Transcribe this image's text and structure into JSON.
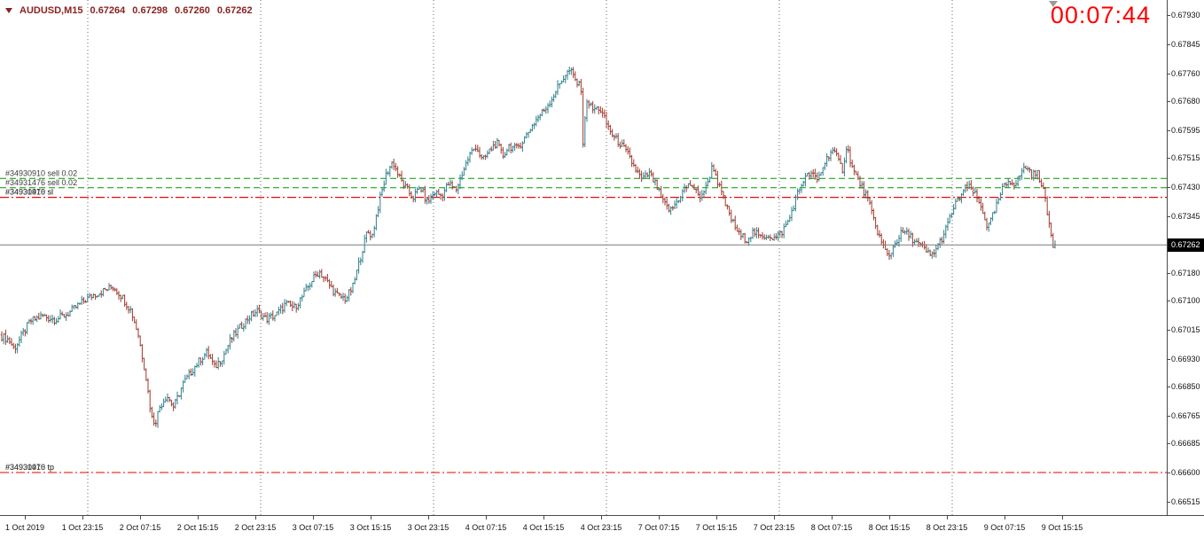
{
  "header": {
    "symbol_timeframe": "AUDUSD,M15",
    "open": "0.67264",
    "high": "0.67298",
    "low": "0.67260",
    "close": "0.67262",
    "text_color": "#8b2222"
  },
  "timer": {
    "value": "00:07:44",
    "color": "#ff0000"
  },
  "chart_data": {
    "type": "ohlc-bars",
    "title": "AUDUSD,M15",
    "symbol": "AUDUSD",
    "timeframe": "M15",
    "bid": 0.67262,
    "bid_label": "0.67262",
    "ohlc_header": {
      "open": 0.67264,
      "high": 0.67298,
      "low": 0.6726,
      "close": 0.67262
    },
    "up_color": "#2f7f8c",
    "down_color": "#9e3a2e",
    "colors": {
      "entry_line": "#009a00",
      "stop_line": "#e80000",
      "bid_line": "#7a7a7a",
      "separator": "#6a6a6a",
      "axis_text": "#111111",
      "order_label_text": "#3a3a3a"
    },
    "y_axis": {
      "min": 0.66515,
      "max": 0.6793,
      "labels": [
        "0.67930",
        "0.67845",
        "0.67760",
        "0.67680",
        "0.67595",
        "0.67515",
        "0.67430",
        "0.67345",
        "0.67260",
        "0.67180",
        "0.67100",
        "0.67015",
        "0.66930",
        "0.66850",
        "0.66765",
        "0.66685",
        "0.66600",
        "0.66515"
      ]
    },
    "x_axis": {
      "labels": [
        "1 Oct 2019",
        "1 Oct 23:15",
        "2 Oct 07:15",
        "2 Oct 15:15",
        "2 Oct 23:15",
        "3 Oct 07:15",
        "3 Oct 15:15",
        "3 Oct 23:15",
        "4 Oct 07:15",
        "4 Oct 15:15",
        "4 Oct 23:15",
        "7 Oct 07:15",
        "7 Oct 15:15",
        "7 Oct 23:15",
        "8 Oct 07:15",
        "8 Oct 15:15",
        "8 Oct 23:15",
        "9 Oct 07:15",
        "9 Oct 15:15"
      ]
    },
    "day_separators_x": [
      99,
      294,
      489,
      684,
      879,
      1074
    ],
    "orders": [
      {
        "id": "#34930910",
        "label": "#34930910 sell 0.02",
        "price": 0.67455,
        "kind": "entry"
      },
      {
        "id": "#34931476",
        "label": "#34931476 sell 0.02",
        "price": 0.67428,
        "kind": "entry"
      },
      {
        "id": "#34930910",
        "label": "#34930910 sl",
        "price": 0.674,
        "kind": "sl"
      },
      {
        "id": "#34931476",
        "label": "#34931476 sl",
        "price": 0.674,
        "kind": "sl"
      },
      {
        "id": "#34930910",
        "label": "#34930910 tp",
        "price": 0.666,
        "kind": "tp"
      },
      {
        "id": "#34931476",
        "label": "#34931476 tp",
        "price": 0.666,
        "kind": "tp"
      }
    ],
    "price_path": [
      [
        0,
        0.67
      ],
      [
        10,
        0.66985
      ],
      [
        16,
        0.6696
      ],
      [
        24,
        0.66995
      ],
      [
        34,
        0.6704
      ],
      [
        48,
        0.67055
      ],
      [
        62,
        0.67045
      ],
      [
        76,
        0.6706
      ],
      [
        90,
        0.6709
      ],
      [
        104,
        0.67115
      ],
      [
        118,
        0.6713
      ],
      [
        128,
        0.6714
      ],
      [
        138,
        0.6711
      ],
      [
        148,
        0.6707
      ],
      [
        156,
        0.67
      ],
      [
        164,
        0.6689
      ],
      [
        171,
        0.6676
      ],
      [
        175,
        0.66745
      ],
      [
        180,
        0.6679
      ],
      [
        188,
        0.66825
      ],
      [
        196,
        0.6679
      ],
      [
        206,
        0.66855
      ],
      [
        216,
        0.66895
      ],
      [
        226,
        0.6693
      ],
      [
        234,
        0.6695
      ],
      [
        242,
        0.66905
      ],
      [
        252,
        0.6694
      ],
      [
        260,
        0.66985
      ],
      [
        270,
        0.6702
      ],
      [
        280,
        0.6705
      ],
      [
        290,
        0.6707
      ],
      [
        300,
        0.67045
      ],
      [
        312,
        0.6706
      ],
      [
        322,
        0.6709
      ],
      [
        332,
        0.6708
      ],
      [
        342,
        0.67115
      ],
      [
        352,
        0.6716
      ],
      [
        360,
        0.67185
      ],
      [
        370,
        0.6715
      ],
      [
        380,
        0.67115
      ],
      [
        390,
        0.67105
      ],
      [
        398,
        0.6714
      ],
      [
        406,
        0.6722
      ],
      [
        414,
        0.673
      ],
      [
        420,
        0.6729
      ],
      [
        428,
        0.6739
      ],
      [
        436,
        0.6747
      ],
      [
        443,
        0.67505
      ],
      [
        450,
        0.6746
      ],
      [
        458,
        0.67425
      ],
      [
        466,
        0.674
      ],
      [
        474,
        0.6743
      ],
      [
        482,
        0.67385
      ],
      [
        490,
        0.67415
      ],
      [
        498,
        0.67405
      ],
      [
        506,
        0.6744
      ],
      [
        514,
        0.6742
      ],
      [
        522,
        0.67475
      ],
      [
        530,
        0.67525
      ],
      [
        537,
        0.6755
      ],
      [
        544,
        0.67505
      ],
      [
        552,
        0.67535
      ],
      [
        560,
        0.6756
      ],
      [
        567,
        0.6752
      ],
      [
        574,
        0.6755
      ],
      [
        582,
        0.6754
      ],
      [
        590,
        0.67565
      ],
      [
        598,
        0.676
      ],
      [
        606,
        0.6763
      ],
      [
        614,
        0.67655
      ],
      [
        622,
        0.67685
      ],
      [
        630,
        0.67725
      ],
      [
        637,
        0.67755
      ],
      [
        643,
        0.6777
      ],
      [
        650,
        0.67735
      ],
      [
        656,
        0.67715
      ],
      [
        658,
        0.6752
      ],
      [
        661,
        0.6769
      ],
      [
        668,
        0.67655
      ],
      [
        676,
        0.6766
      ],
      [
        684,
        0.67615
      ],
      [
        692,
        0.67575
      ],
      [
        700,
        0.67555
      ],
      [
        708,
        0.67525
      ],
      [
        716,
        0.67485
      ],
      [
        724,
        0.6745
      ],
      [
        732,
        0.6747
      ],
      [
        740,
        0.67435
      ],
      [
        748,
        0.67385
      ],
      [
        756,
        0.6736
      ],
      [
        764,
        0.6739
      ],
      [
        772,
        0.67425
      ],
      [
        780,
        0.6744
      ],
      [
        788,
        0.674
      ],
      [
        796,
        0.67425
      ],
      [
        804,
        0.67495
      ],
      [
        810,
        0.6744
      ],
      [
        818,
        0.6738
      ],
      [
        826,
        0.6733
      ],
      [
        834,
        0.6729
      ],
      [
        842,
        0.67278
      ],
      [
        850,
        0.673
      ],
      [
        858,
        0.67282
      ],
      [
        866,
        0.67292
      ],
      [
        874,
        0.6728
      ],
      [
        882,
        0.673
      ],
      [
        890,
        0.67335
      ],
      [
        898,
        0.674
      ],
      [
        906,
        0.6745
      ],
      [
        914,
        0.6747
      ],
      [
        922,
        0.6745
      ],
      [
        930,
        0.675
      ],
      [
        938,
        0.6754
      ],
      [
        944,
        0.67515
      ],
      [
        950,
        0.6748
      ],
      [
        955,
        0.6755
      ],
      [
        962,
        0.6748
      ],
      [
        970,
        0.6744
      ],
      [
        978,
        0.674
      ],
      [
        986,
        0.6733
      ],
      [
        994,
        0.6727
      ],
      [
        1002,
        0.67225
      ],
      [
        1010,
        0.6727
      ],
      [
        1018,
        0.673
      ],
      [
        1026,
        0.67288
      ],
      [
        1034,
        0.67268
      ],
      [
        1042,
        0.6725
      ],
      [
        1050,
        0.67228
      ],
      [
        1058,
        0.6726
      ],
      [
        1066,
        0.673
      ],
      [
        1074,
        0.6736
      ],
      [
        1082,
        0.674
      ],
      [
        1090,
        0.6743
      ],
      [
        1096,
        0.67425
      ],
      [
        1102,
        0.67395
      ],
      [
        1108,
        0.67365
      ],
      [
        1114,
        0.6731
      ],
      [
        1122,
        0.6736
      ],
      [
        1130,
        0.6742
      ],
      [
        1138,
        0.6745
      ],
      [
        1146,
        0.6744
      ],
      [
        1152,
        0.67475
      ],
      [
        1158,
        0.6749
      ],
      [
        1164,
        0.67465
      ],
      [
        1170,
        0.6747
      ],
      [
        1176,
        0.67435
      ],
      [
        1182,
        0.6734
      ],
      [
        1188,
        0.67262
      ]
    ]
  }
}
